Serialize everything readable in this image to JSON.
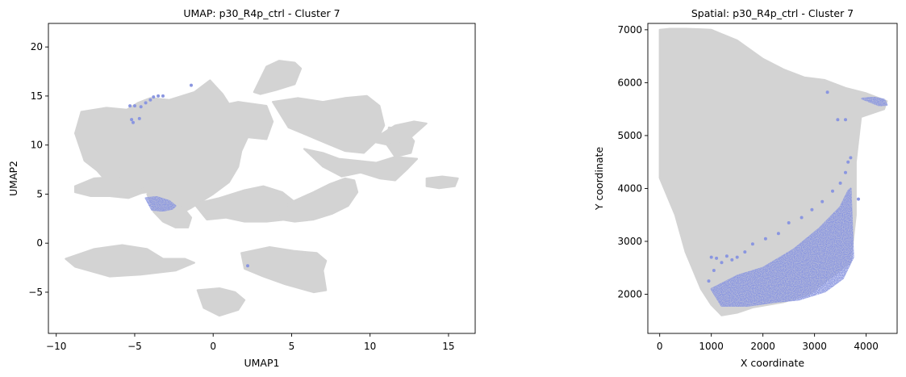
{
  "chart_data": [
    {
      "type": "scatter",
      "title": "UMAP: p30_R4p_ctrl - Cluster 7",
      "xlabel": "UMAP1",
      "ylabel": "UMAP2",
      "xlim": [
        -10.5,
        16.7
      ],
      "ylim": [
        -9.2,
        22.4
      ],
      "xticks": [
        -10,
        -5,
        0,
        5,
        10,
        15
      ],
      "yticks": [
        -5,
        0,
        5,
        10,
        15,
        20
      ],
      "grid": false,
      "colors": {
        "background_cells": "#d3d3d3",
        "cluster_cells": "#8a96e0"
      },
      "background_regions": [
        {
          "xs": [
            -8.4,
            -6.8,
            -5.5,
            -4.8,
            -4.0,
            -2.8,
            -1.2,
            -0.2,
            0.6,
            1.0,
            1.6,
            3.4,
            3.8,
            3.4,
            2.2,
            1.8,
            1.6,
            1.0,
            0.0,
            -0.8,
            -1.4,
            -2.6,
            -3.2,
            -3.4,
            -4.2,
            -5.0,
            -5.6,
            -6.4,
            -7.4,
            -8.2,
            -8.8,
            -8.4
          ],
          "ys": [
            13.4,
            13.8,
            13.6,
            14.3,
            14.8,
            14.6,
            15.4,
            16.6,
            15.2,
            14.2,
            14.4,
            14.0,
            12.4,
            10.6,
            10.8,
            9.4,
            7.8,
            6.2,
            5.0,
            4.2,
            3.6,
            2.6,
            2.8,
            4.0,
            5.2,
            5.0,
            5.4,
            5.6,
            7.4,
            8.4,
            11.2,
            13.4
          ]
        },
        {
          "xs": [
            -8.8,
            -7.6,
            -5.8,
            -4.6,
            -4.4,
            -5.4,
            -6.6,
            -7.8,
            -8.8
          ],
          "ys": [
            5.8,
            6.6,
            6.8,
            6.0,
            5.2,
            4.6,
            4.8,
            4.8,
            5.2
          ]
        },
        {
          "xs": [
            -4.2,
            -2.8,
            -2.0,
            -1.4,
            -1.6,
            -2.4,
            -3.2,
            -3.8,
            -4.2
          ],
          "ys": [
            5.0,
            4.8,
            3.8,
            2.6,
            1.6,
            1.6,
            2.2,
            3.2,
            5.0
          ]
        },
        {
          "xs": [
            2.6,
            3.4,
            4.2,
            5.2,
            5.6,
            5.2,
            4.0,
            3.0,
            2.6
          ],
          "ys": [
            15.4,
            18.0,
            18.6,
            18.4,
            17.8,
            16.2,
            15.6,
            15.2,
            15.4
          ]
        },
        {
          "xs": [
            3.8,
            5.4,
            7.0,
            8.4,
            9.8,
            10.6,
            10.9,
            10.4,
            9.6,
            8.4,
            7.2,
            6.0,
            4.8,
            3.8
          ],
          "ys": [
            14.4,
            14.8,
            14.4,
            14.8,
            15.0,
            14.0,
            12.0,
            10.4,
            9.2,
            9.4,
            10.2,
            11.0,
            11.8,
            14.4
          ]
        },
        {
          "xs": [
            5.8,
            7.0,
            8.0,
            9.2,
            10.4,
            11.6,
            13.0,
            12.4,
            11.6,
            10.6,
            9.4,
            8.2,
            7.0,
            5.8
          ],
          "ys": [
            9.6,
            9.2,
            8.6,
            8.4,
            8.2,
            8.8,
            8.6,
            7.6,
            6.4,
            6.6,
            7.2,
            6.8,
            7.8,
            9.6
          ]
        },
        {
          "xs": [
            11.2,
            12.2,
            12.8,
            12.6,
            11.6,
            11.0,
            11.2
          ],
          "ys": [
            11.8,
            11.6,
            10.4,
            9.2,
            8.8,
            10.2,
            11.8
          ]
        },
        {
          "xs": [
            -1.2,
            0.4,
            2.0,
            3.2,
            4.4,
            5.2,
            5.4,
            4.6,
            3.4,
            2.0,
            0.8,
            -0.4,
            -1.2
          ],
          "ys": [
            4.0,
            4.6,
            5.4,
            5.8,
            5.2,
            4.2,
            3.0,
            2.4,
            2.2,
            2.2,
            2.6,
            2.4,
            4.0
          ]
        },
        {
          "xs": [
            4.0,
            5.0,
            6.4,
            7.4,
            8.4,
            9.0,
            9.2,
            8.6,
            7.6,
            6.4,
            5.2,
            4.4,
            4.0
          ],
          "ys": [
            3.0,
            4.2,
            5.2,
            6.0,
            6.6,
            6.4,
            5.2,
            3.8,
            3.0,
            2.4,
            2.2,
            2.4,
            3.0
          ]
        },
        {
          "xs": [
            13.6,
            14.6,
            15.6,
            15.4,
            14.4,
            13.6,
            13.6
          ],
          "ys": [
            6.6,
            6.8,
            6.6,
            5.8,
            5.6,
            5.8,
            6.6
          ]
        },
        {
          "xs": [
            10.0,
            11.6,
            12.8,
            13.6,
            12.6,
            11.2,
            10.0
          ],
          "ys": [
            10.4,
            12.0,
            12.4,
            12.2,
            10.8,
            10.0,
            10.4
          ]
        },
        {
          "xs": [
            -9.4,
            -7.6,
            -5.8,
            -4.2,
            -3.2,
            -1.8,
            -1.2,
            -2.4,
            -4.6,
            -6.6,
            -8.8,
            -9.4
          ],
          "ys": [
            -1.6,
            -0.6,
            -0.2,
            -0.6,
            -1.6,
            -1.6,
            -2.0,
            -2.8,
            -3.2,
            -3.4,
            -2.4,
            -1.6
          ]
        },
        {
          "xs": [
            1.8,
            3.6,
            5.2,
            6.6,
            7.2,
            7.0,
            7.2,
            6.4,
            4.6,
            3.2,
            2.0,
            1.8
          ],
          "ys": [
            -1.0,
            -0.4,
            -0.8,
            -1.0,
            -1.8,
            -2.8,
            -4.8,
            -5.0,
            -4.2,
            -3.4,
            -2.6,
            -1.0
          ]
        },
        {
          "xs": [
            -1.0,
            0.4,
            1.4,
            2.0,
            1.6,
            0.4,
            -0.6,
            -1.0
          ],
          "ys": [
            -4.8,
            -4.6,
            -5.0,
            -5.8,
            -6.8,
            -7.4,
            -6.6,
            -4.8
          ]
        }
      ],
      "cluster_regions": [
        {
          "xs": [
            -4.3,
            -3.6,
            -2.8,
            -2.4,
            -2.6,
            -3.2,
            -3.9,
            -4.3
          ],
          "ys": [
            4.6,
            4.7,
            4.3,
            3.8,
            3.5,
            3.3,
            3.4,
            4.6
          ]
        }
      ],
      "cluster_points": [
        [
          -5.3,
          14.0
        ],
        [
          -5.0,
          14.0
        ],
        [
          -4.6,
          13.9
        ],
        [
          -4.3,
          14.3
        ],
        [
          -4.0,
          14.6
        ],
        [
          -3.8,
          14.9
        ],
        [
          -3.5,
          15.0
        ],
        [
          -3.2,
          15.0
        ],
        [
          -5.2,
          12.6
        ],
        [
          -5.1,
          12.3
        ],
        [
          -4.7,
          12.7
        ],
        [
          -1.4,
          16.1
        ],
        [
          2.2,
          -2.3
        ]
      ]
    },
    {
      "type": "scatter",
      "title": "Spatial: p30_R4p_ctrl - Cluster 7",
      "xlabel": "X coordinate",
      "ylabel": "Y coordinate",
      "xlim": [
        -230,
        4600
      ],
      "ylim": [
        1260,
        7120
      ],
      "xticks": [
        0,
        1000,
        2000,
        3000,
        4000
      ],
      "yticks": [
        2000,
        3000,
        4000,
        5000,
        6000,
        7000
      ],
      "grid": false,
      "colors": {
        "background_cells": "#d3d3d3",
        "cluster_cells": "#8a96e0"
      },
      "background_regions": [
        {
          "xs": [
            0,
            200,
            500,
            800,
            1000,
            1500,
            2000,
            2400,
            2800,
            3200,
            3600,
            4000,
            4400,
            4350,
            3900,
            3800,
            3800,
            3700,
            3300,
            2900,
            2400,
            1800,
            1500,
            1200,
            1000,
            800,
            500,
            300,
            0
          ],
          "ys": [
            7000,
            7020,
            7020,
            7010,
            7000,
            6800,
            6450,
            6250,
            6100,
            6050,
            5900,
            5800,
            5650,
            5500,
            5350,
            4500,
            3500,
            2600,
            2300,
            2000,
            1850,
            1750,
            1650,
            1600,
            1800,
            2100,
            2800,
            3500,
            4200
          ]
        }
      ],
      "cluster_regions": [
        {
          "xs": [
            1000,
            1500,
            2000,
            2600,
            3100,
            3500,
            3650,
            3700,
            3750,
            3550,
            3200,
            2700,
            2200,
            1700,
            1200,
            1000
          ],
          "ys": [
            2100,
            2350,
            2500,
            2850,
            3250,
            3650,
            3950,
            4000,
            2700,
            2300,
            2050,
            1900,
            1850,
            1780,
            1780,
            2100
          ]
        },
        {
          "xs": [
            3920,
            4150,
            4350,
            4400,
            4250,
            3920
          ],
          "ys": [
            5700,
            5720,
            5680,
            5580,
            5570,
            5700
          ]
        }
      ],
      "cluster_points": [
        [
          1000,
          2700
        ],
        [
          1100,
          2680
        ],
        [
          1200,
          2600
        ],
        [
          1300,
          2720
        ],
        [
          1400,
          2650
        ],
        [
          1500,
          2700
        ],
        [
          1650,
          2800
        ],
        [
          1800,
          2950
        ],
        [
          2050,
          3050
        ],
        [
          2300,
          3150
        ],
        [
          2500,
          3350
        ],
        [
          2750,
          3450
        ],
        [
          2950,
          3600
        ],
        [
          3150,
          3750
        ],
        [
          3350,
          3950
        ],
        [
          3500,
          4100
        ],
        [
          3600,
          4300
        ],
        [
          3650,
          4500
        ],
        [
          3700,
          4580
        ],
        [
          3250,
          5820
        ],
        [
          3450,
          5300
        ],
        [
          3600,
          5300
        ],
        [
          3850,
          3800
        ],
        [
          950,
          2250
        ],
        [
          1050,
          2450
        ]
      ]
    }
  ]
}
